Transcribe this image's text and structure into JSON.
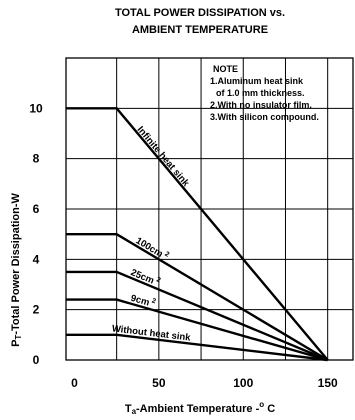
{
  "chart_data": {
    "type": "line",
    "title_line1": "TOTAL POWER DISSIPATION vs.",
    "title_line2": "AMBIENT TEMPERATURE",
    "xlabel": {
      "prefix": "T",
      "sub": "a",
      "main": "-Ambient Temperature -",
      "sup": "o",
      "unit": " C"
    },
    "ylabel": {
      "prefix": "P",
      "sub": "T",
      "main": "-Total Power Dissipation-W"
    },
    "xlim": [
      -5,
      165
    ],
    "ylim": [
      0,
      12
    ],
    "x_ticks": [
      0,
      50,
      100,
      150
    ],
    "y_ticks": [
      0,
      2,
      4,
      6,
      8,
      10
    ],
    "grid": true,
    "note": {
      "title": "NOTE",
      "lines": [
        "1.Aluminum heat sink",
        "   of 1.0 mm thickness.",
        "2.With no insulator film.",
        "3.With silicon compound."
      ]
    },
    "series": [
      {
        "name": "Infinite heat sink",
        "x": [
          -5,
          25,
          150
        ],
        "y": [
          10,
          10,
          0
        ]
      },
      {
        "name": "100cm",
        "name_sup": "2",
        "x": [
          -5,
          25,
          150
        ],
        "y": [
          5,
          5,
          0
        ]
      },
      {
        "name": "25cm",
        "name_sup": "2",
        "x": [
          -5,
          25,
          150
        ],
        "y": [
          3.5,
          3.5,
          0
        ]
      },
      {
        "name": "9cm",
        "name_sup": "2",
        "x": [
          -5,
          25,
          150
        ],
        "y": [
          2.4,
          2.4,
          0
        ]
      },
      {
        "name": "Without   heat sink",
        "x": [
          -5,
          25,
          150
        ],
        "y": [
          1,
          1,
          0
        ]
      }
    ],
    "line_color": "#000000"
  }
}
